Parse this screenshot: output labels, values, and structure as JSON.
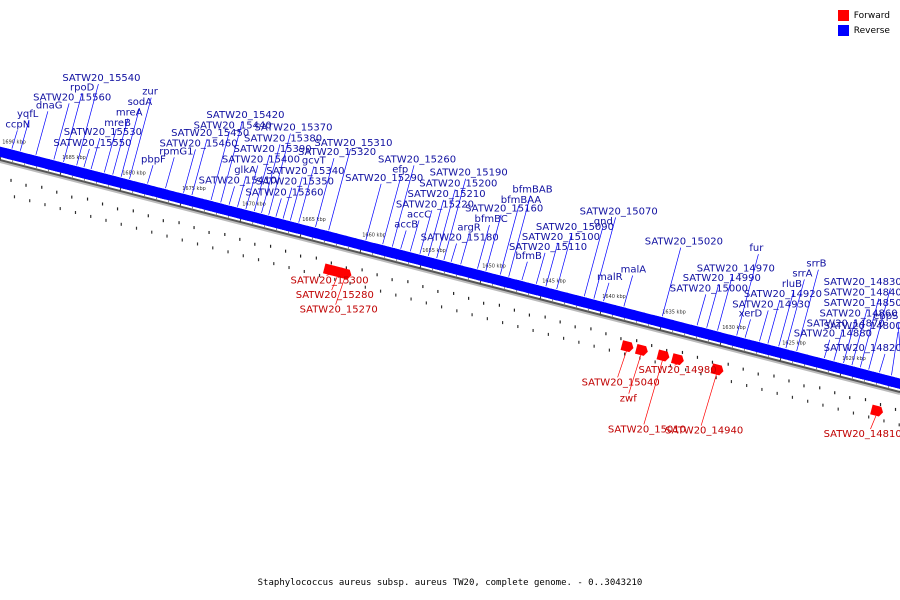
{
  "legend": [
    {
      "label": "Forward",
      "color": "#ff0000"
    },
    {
      "label": "Reverse",
      "color": "#0000ff"
    }
  ],
  "caption": "Staphylococcus aureus subsp. aureus TW20, complete genome. - 0..3043210",
  "colors": {
    "forward": "#ff0000",
    "reverse": "#0000ff",
    "label_forward": "#c00000",
    "label_reverse": "#1010a0"
  },
  "ruler": {
    "start_kbp": 1690,
    "end_kbp": 1615,
    "tick_every_kbp": 5,
    "unit": "kbp"
  },
  "genes": [
    {
      "label": "ccpN",
      "strand": "reverse",
      "kbp": 1689.3
    },
    {
      "label": "yqfL",
      "strand": "reverse",
      "kbp": 1688.6
    },
    {
      "label": "dnaG",
      "strand": "reverse",
      "kbp": 1687.3
    },
    {
      "label": "SATW20_15560",
      "strand": "reverse",
      "kbp": 1685.8
    },
    {
      "label": "rpoD",
      "strand": "reverse",
      "kbp": 1685.0
    },
    {
      "label": "SATW20_15540",
      "strand": "reverse",
      "kbp": 1683.9
    },
    {
      "label": "SATW20_15550",
      "strand": "reverse",
      "kbp": 1683.3
    },
    {
      "label": "SATW20_15530",
      "strand": "reverse",
      "kbp": 1682.7
    },
    {
      "label": "mreB",
      "strand": "reverse",
      "kbp": 1681.6
    },
    {
      "label": "mreA",
      "strand": "reverse",
      "kbp": 1680.9
    },
    {
      "label": "sodA",
      "strand": "reverse",
      "kbp": 1680.2
    },
    {
      "label": "zur",
      "strand": "reverse",
      "kbp": 1679.5
    },
    {
      "label": "pbpF",
      "strand": "reverse",
      "kbp": 1678.0
    },
    {
      "label": "rpmG1",
      "strand": "reverse",
      "kbp": 1676.5
    },
    {
      "label": "SATW20_15460",
      "strand": "reverse",
      "kbp": 1675.0
    },
    {
      "label": "SATW20_15450",
      "strand": "reverse",
      "kbp": 1674.3
    },
    {
      "label": "SATW20_15440",
      "strand": "reverse",
      "kbp": 1672.7
    },
    {
      "label": "SATW20_15420",
      "strand": "reverse",
      "kbp": 1671.9
    },
    {
      "label": "SATW20_15410",
      "strand": "reverse",
      "kbp": 1671.2
    },
    {
      "label": "glkA",
      "strand": "reverse",
      "kbp": 1670.5
    },
    {
      "label": "SATW20_15400",
      "strand": "reverse",
      "kbp": 1669.8
    },
    {
      "label": "SATW20_15390",
      "strand": "reverse",
      "kbp": 1669.1
    },
    {
      "label": "SATW20_15380",
      "strand": "reverse",
      "kbp": 1668.5
    },
    {
      "label": "SATW20_15370",
      "strand": "reverse",
      "kbp": 1667.9
    },
    {
      "label": "SATW20_15360",
      "strand": "reverse",
      "kbp": 1667.3
    },
    {
      "label": "SATW20_15350",
      "strand": "reverse",
      "kbp": 1666.7
    },
    {
      "label": "SATW20_15340",
      "strand": "reverse",
      "kbp": 1666.1
    },
    {
      "label": "gcvT",
      "strand": "reverse",
      "kbp": 1665.4
    },
    {
      "label": "SATW20_15320",
      "strand": "reverse",
      "kbp": 1664.0
    },
    {
      "label": "SATW20_15310",
      "strand": "reverse",
      "kbp": 1662.9
    },
    {
      "label": "SATW20_15300",
      "strand": "forward",
      "kbp": 1662.0
    },
    {
      "label": "SATW20_15280",
      "strand": "forward",
      "kbp": 1661.3
    },
    {
      "label": "SATW20_15270",
      "strand": "forward",
      "kbp": 1660.7
    },
    {
      "label": "SATW20_15290",
      "strand": "reverse",
      "kbp": 1659.8
    },
    {
      "label": "efp",
      "strand": "reverse",
      "kbp": 1658.4
    },
    {
      "label": "SATW20_15260",
      "strand": "reverse",
      "kbp": 1657.6
    },
    {
      "label": "accB",
      "strand": "reverse",
      "kbp": 1656.9
    },
    {
      "label": "accC",
      "strand": "reverse",
      "kbp": 1656.1
    },
    {
      "label": "SATW20_15220",
      "strand": "reverse",
      "kbp": 1655.3
    },
    {
      "label": "SATW20_15210",
      "strand": "reverse",
      "kbp": 1654.6
    },
    {
      "label": "SATW20_15200",
      "strand": "reverse",
      "kbp": 1653.9
    },
    {
      "label": "SATW20_15190",
      "strand": "reverse",
      "kbp": 1653.3
    },
    {
      "label": "SATW20_15180",
      "strand": "reverse",
      "kbp": 1652.7
    },
    {
      "label": "argR",
      "strand": "reverse",
      "kbp": 1651.9
    },
    {
      "label": "bfmBC",
      "strand": "reverse",
      "kbp": 1650.5
    },
    {
      "label": "SATW20_15160",
      "strand": "reverse",
      "kbp": 1649.8
    },
    {
      "label": "bfmBAA",
      "strand": "reverse",
      "kbp": 1648.6
    },
    {
      "label": "bfmBAB",
      "strand": "reverse",
      "kbp": 1647.9
    },
    {
      "label": "bfmB",
      "strand": "reverse",
      "kbp": 1646.8
    },
    {
      "label": "SATW20_15110",
      "strand": "reverse",
      "kbp": 1645.6
    },
    {
      "label": "SATW20_15100",
      "strand": "reverse",
      "kbp": 1644.8
    },
    {
      "label": "SATW20_15090",
      "strand": "reverse",
      "kbp": 1643.9
    },
    {
      "label": "gnd",
      "strand": "reverse",
      "kbp": 1641.6
    },
    {
      "label": "SATW20_15070",
      "strand": "reverse",
      "kbp": 1640.8
    },
    {
      "label": "malR",
      "strand": "reverse",
      "kbp": 1640.0
    },
    {
      "label": "malA",
      "strand": "reverse",
      "kbp": 1638.3
    },
    {
      "label": "SATW20_15040",
      "strand": "forward",
      "kbp": 1637.2
    },
    {
      "label": "zwf",
      "strand": "forward",
      "kbp": 1636.0
    },
    {
      "label": "SATW20_15020",
      "strand": "reverse",
      "kbp": 1635.1
    },
    {
      "label": "SATW20_15010",
      "strand": "forward",
      "kbp": 1634.2
    },
    {
      "label": "SATW20_14980",
      "strand": "forward",
      "kbp": 1633.0
    },
    {
      "label": "SATW20_15000",
      "strand": "reverse",
      "kbp": 1632.2
    },
    {
      "label": "SATW20_14990",
      "strand": "reverse",
      "kbp": 1631.4
    },
    {
      "label": "SATW20_14970",
      "strand": "reverse",
      "kbp": 1630.5
    },
    {
      "label": "SATW20_14940",
      "strand": "forward",
      "kbp": 1629.7
    },
    {
      "label": "fur",
      "strand": "reverse",
      "kbp": 1628.9
    },
    {
      "label": "xerD",
      "strand": "reverse",
      "kbp": 1628.2
    },
    {
      "label": "SATW20_14930",
      "strand": "reverse",
      "kbp": 1627.0
    },
    {
      "label": "SATW20_14920",
      "strand": "reverse",
      "kbp": 1626.3
    },
    {
      "label": "rluB",
      "strand": "reverse",
      "kbp": 1625.4
    },
    {
      "label": "srrA",
      "strand": "reverse",
      "kbp": 1624.8
    },
    {
      "label": "srrB",
      "strand": "reverse",
      "kbp": 1623.9
    },
    {
      "label": "SATW20_14880",
      "strand": "reverse",
      "kbp": 1621.6
    },
    {
      "label": "SATW20_14870",
      "strand": "reverse",
      "kbp": 1620.8
    },
    {
      "label": "SATW20_14860",
      "strand": "reverse",
      "kbp": 1620.0
    },
    {
      "label": "SATW20_14850",
      "strand": "reverse",
      "kbp": 1619.3
    },
    {
      "label": "SATW20_14840",
      "strand": "reverse",
      "kbp": 1618.6
    },
    {
      "label": "SATW20_14830",
      "strand": "reverse",
      "kbp": 1617.9
    },
    {
      "label": "SATW20_14820",
      "strand": "reverse",
      "kbp": 1617.0
    },
    {
      "label": "SATW20_14810",
      "strand": "forward",
      "kbp": 1616.4
    },
    {
      "label": "SATW20_14800",
      "strand": "reverse",
      "kbp": 1616.0
    },
    {
      "label": "ebpS",
      "strand": "reverse",
      "kbp": 1615.1
    }
  ]
}
